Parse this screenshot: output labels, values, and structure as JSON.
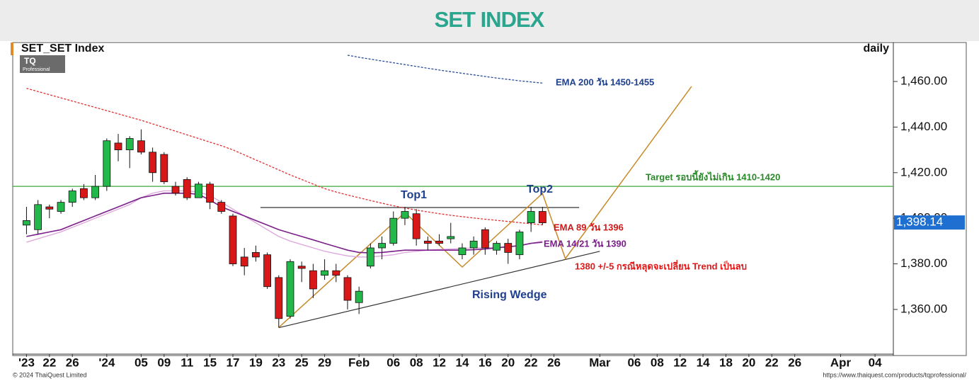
{
  "header": {
    "title": "SET INDEX"
  },
  "logo": {
    "brand": "TQ",
    "sub": "Professional"
  },
  "footer": {
    "copyright": "© 2024 ThaiQuest Limited",
    "url": "https://www.thaiquest.com/products/tqprofessional/"
  },
  "chart_data": {
    "type": "candlestick",
    "title": "SET_SET Index",
    "period": "daily",
    "x": [
      0,
      1,
      2,
      3,
      4,
      5,
      6,
      7,
      8,
      9,
      10,
      11,
      12,
      13,
      14,
      15,
      16,
      17,
      18,
      19,
      20,
      21,
      22,
      23,
      24,
      25,
      26,
      27,
      28,
      29,
      30,
      31,
      32,
      33,
      34,
      35,
      36,
      37,
      38,
      39,
      40,
      41,
      42,
      43,
      44,
      45
    ],
    "open": [
      1397,
      1395,
      1405,
      1403,
      1407,
      1413,
      1409,
      1414,
      1433,
      1430,
      1434,
      1429,
      1428,
      1414,
      1417,
      1409,
      1415,
      1407,
      1401,
      1383,
      1385,
      1384,
      1374,
      1357,
      1379,
      1377,
      1375,
      1377,
      1374,
      1363,
      1379,
      1387,
      1389,
      1400,
      1402,
      1390,
      1390,
      1391,
      1384,
      1387,
      1395,
      1386,
      1389,
      1384,
      1398,
      1403
    ],
    "high": [
      1405,
      1408,
      1406,
      1408,
      1413,
      1415,
      1419,
      1435,
      1437,
      1436,
      1439,
      1431,
      1429,
      1416,
      1418,
      1416,
      1416,
      1408,
      1402,
      1387,
      1388,
      1385,
      1375,
      1382,
      1381,
      1380,
      1382,
      1380,
      1375,
      1370,
      1389,
      1392,
      1403,
      1405,
      1404,
      1392,
      1393,
      1398,
      1389,
      1392,
      1396,
      1390,
      1391,
      1395,
      1405,
      1405
    ],
    "low": [
      1393,
      1393,
      1400,
      1402,
      1405,
      1408,
      1408,
      1412,
      1425,
      1422,
      1428,
      1416,
      1415,
      1410,
      1408,
      1409,
      1404,
      1402,
      1379,
      1375,
      1381,
      1369,
      1352,
      1356,
      1372,
      1365,
      1373,
      1372,
      1360,
      1358,
      1378,
      1382,
      1388,
      1397,
      1388,
      1386,
      1388,
      1389,
      1382,
      1384,
      1384,
      1384,
      1380,
      1382,
      1394,
      1397
    ],
    "close": [
      1399,
      1406,
      1404,
      1407,
      1412,
      1409,
      1414,
      1434,
      1430,
      1435,
      1429,
      1420,
      1416,
      1411,
      1409,
      1415,
      1407,
      1403,
      1380,
      1379,
      1383,
      1370,
      1356,
      1381,
      1378,
      1369,
      1377,
      1375,
      1364,
      1368,
      1387,
      1389,
      1400,
      1403,
      1391,
      1389,
      1389,
      1392,
      1387,
      1390,
      1387,
      1389,
      1385,
      1394,
      1403,
      1398
    ],
    "up_color": "#22b84a",
    "down_color": "#d81818",
    "series": [
      {
        "color": "#2a4a9a",
        "dash": true,
        "values": [
          null,
          null,
          null,
          null,
          null,
          null,
          null,
          null,
          null,
          null,
          null,
          null,
          null,
          null,
          null,
          null,
          null,
          null,
          null,
          null,
          null,
          null,
          null,
          null,
          null,
          null,
          null,
          null,
          1471.5,
          1470.6,
          1469.8,
          1469,
          1468.2,
          1467.4,
          1466.6,
          1465.8,
          1465,
          1464.3,
          1463.6,
          1462.9,
          1462.2,
          1461.5,
          1460.9,
          1460.3,
          1459.8,
          1459.3
        ]
      },
      {
        "color": "#e03030",
        "dash": true,
        "values": [
          1457,
          1455.6,
          1454.2,
          1452.8,
          1451.4,
          1450,
          1448.6,
          1447.2,
          1445.8,
          1444.4,
          1443,
          1441.4,
          1439.8,
          1438.2,
          1436.6,
          1435,
          1433.4,
          1431.8,
          1430,
          1427.8,
          1425.6,
          1423.4,
          1421.2,
          1419,
          1417,
          1415,
          1413,
          1411.5,
          1410.2,
          1409,
          1407.8,
          1406.6,
          1405.5,
          1404.5,
          1403.6,
          1402.8,
          1402,
          1401.3,
          1400.7,
          1400.1,
          1399.6,
          1399.1,
          1398.6,
          1398.1,
          1397.6,
          1397.1
        ]
      },
      {
        "color": "#dca3dc",
        "dash": false,
        "values": [
          1389.5,
          1391,
          1392.5,
          1394,
          1396,
          1398,
          1400,
          1402,
          1404,
          1406,
          1409,
          1411,
          1412,
          1412,
          1412,
          1411.5,
          1410,
          1407,
          1404,
          1401,
          1398,
          1395,
          1392,
          1390,
          1388.5,
          1387,
          1385.5,
          1384.5,
          1383.5,
          1383,
          1383,
          1383.5,
          1384,
          1385,
          1385.5,
          1386,
          1386.3,
          1386.5,
          1386.7,
          1387,
          1387,
          1387.3,
          1387.6,
          1388,
          1389,
          1390
        ]
      },
      {
        "color": "#7b1f8a",
        "dash": false,
        "values": [
          1392,
          1393,
          1394,
          1395,
          1397,
          1399,
          1401,
          1403,
          1405,
          1407,
          1409,
          1410,
          1411,
          1411,
          1411,
          1410.5,
          1408,
          1405,
          1403,
          1401,
          1399,
          1397,
          1395,
          1393.5,
          1392,
          1390.5,
          1389,
          1387.5,
          1386,
          1385,
          1384.8,
          1385,
          1385.5,
          1386,
          1386,
          1386,
          1386,
          1386,
          1386,
          1386.2,
          1386.5,
          1387,
          1387.5,
          1388,
          1389,
          1389.5
        ]
      }
    ],
    "trendlines": [
      {
        "color": "#3aa83a",
        "x": [
          -1.2,
          75.6
        ],
        "y": [
          1414,
          1414
        ]
      },
      {
        "color": "#333333",
        "x": [
          20.4,
          48.2
        ],
        "y": [
          1404.7,
          1404.7
        ]
      },
      {
        "color": "#333333",
        "x": [
          22,
          50
        ],
        "y": [
          1352,
          1385.5
        ]
      },
      {
        "color": "#c88a2a",
        "x": [
          22,
          33,
          38,
          45,
          47,
          58
        ],
        "y": [
          1352.1,
          1402.5,
          1378.6,
          1410.9,
          1382.3,
          1457.8
        ]
      }
    ],
    "annotations": [
      {
        "text": "EMA 200 วัน 1450-1455",
        "color": "#1f3f8f"
      },
      {
        "text": "Target รอบนี้ยังไม่เกิน 1410-1420",
        "color": "#2a8a2a"
      },
      {
        "text": "Top1",
        "color": "#1f3f8f"
      },
      {
        "text": "Top2",
        "color": "#1f3f8f"
      },
      {
        "text": "EMA 89 วัน 1396",
        "color": "#d01818"
      },
      {
        "text": "EMA 14/21 วัน 1390",
        "color": "#7b1f8a"
      },
      {
        "text": "1380 +/-5 กรณีหลุดจะเปลี่ยน Trend เป็นลบ",
        "color": "#e01818"
      },
      {
        "text": "Rising Wedge",
        "color": "#1f3f8f"
      }
    ],
    "last_price": {
      "value": 1398.14,
      "label": "1,398.14",
      "color": "#1f6fd0"
    },
    "xlim": [
      -1.2,
      75.6
    ],
    "xticks": [
      {
        "value": 0,
        "label": "'23"
      },
      {
        "value": 2,
        "label": "22"
      },
      {
        "value": 4,
        "label": "26"
      },
      {
        "value": 7,
        "label": "'24"
      },
      {
        "value": 10,
        "label": "05"
      },
      {
        "value": 12,
        "label": "09"
      },
      {
        "value": 14,
        "label": "11"
      },
      {
        "value": 16,
        "label": "15"
      },
      {
        "value": 18,
        "label": "17"
      },
      {
        "value": 20,
        "label": "19"
      },
      {
        "value": 22,
        "label": "23"
      },
      {
        "value": 24,
        "label": "25"
      },
      {
        "value": 26,
        "label": "29"
      },
      {
        "value": 29,
        "label": "Feb"
      },
      {
        "value": 32,
        "label": "06"
      },
      {
        "value": 34,
        "label": "08"
      },
      {
        "value": 36,
        "label": "12"
      },
      {
        "value": 38,
        "label": "14"
      },
      {
        "value": 40,
        "label": "16"
      },
      {
        "value": 42,
        "label": "20"
      },
      {
        "value": 44,
        "label": "22"
      },
      {
        "value": 46,
        "label": "26"
      },
      {
        "value": 50,
        "label": "Mar"
      },
      {
        "value": 53,
        "label": "06"
      },
      {
        "value": 55,
        "label": "08"
      },
      {
        "value": 57,
        "label": "12"
      },
      {
        "value": 59,
        "label": "14"
      },
      {
        "value": 61,
        "label": "18"
      },
      {
        "value": 63,
        "label": "20"
      },
      {
        "value": 65,
        "label": "22"
      },
      {
        "value": 67,
        "label": "26"
      },
      {
        "value": 71,
        "label": "Apr"
      },
      {
        "value": 74,
        "label": "04"
      }
    ],
    "ylim": [
      1340.4,
      1477.1
    ],
    "yticks": [
      {
        "value": 1360,
        "label": "1,360.00"
      },
      {
        "value": 1380,
        "label": "1,380.00"
      },
      {
        "value": 1400,
        "label": "1,400.00"
      },
      {
        "value": 1420,
        "label": "1,420.00"
      },
      {
        "value": 1440,
        "label": "1,440.00"
      },
      {
        "value": 1460,
        "label": "1,460.00"
      }
    ]
  }
}
